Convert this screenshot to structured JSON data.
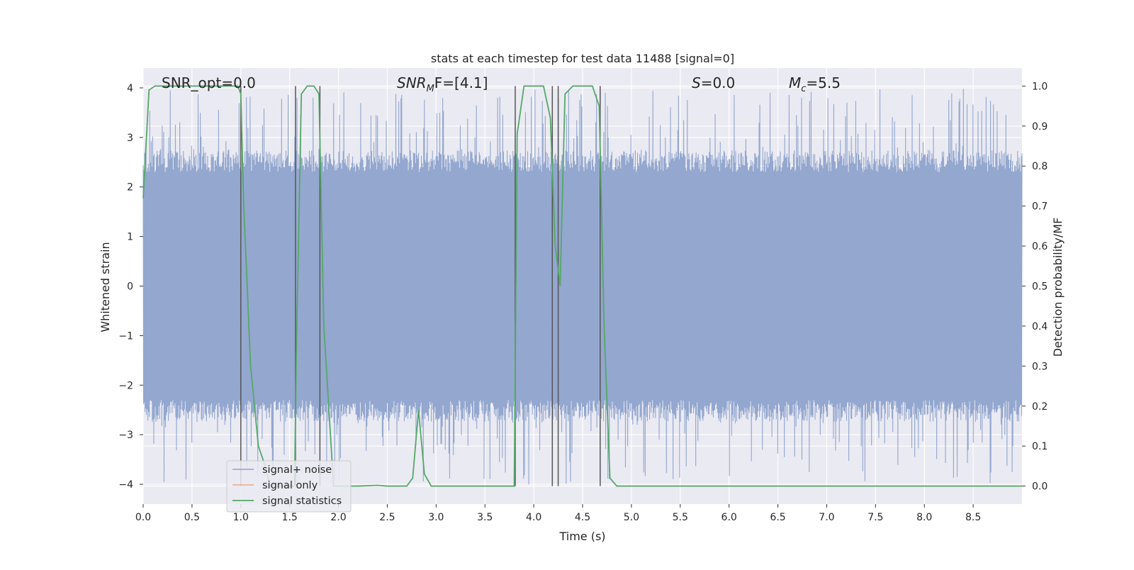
{
  "chart_data": {
    "type": "line",
    "title": "stats at each timestep for test data 11488 [signal=0]",
    "xlabel": "Time (s)",
    "ylabel": "Whitened strain",
    "y2label": "Detection probability/MF",
    "xlim": [
      0.0,
      9.0
    ],
    "ylim": [
      -4.4,
      4.4
    ],
    "y2lim": [
      -0.045,
      1.045
    ],
    "x_ticks": [
      "0.0",
      "0.5",
      "1.0",
      "1.5",
      "2.0",
      "2.5",
      "3.0",
      "3.5",
      "4.0",
      "4.5",
      "5.0",
      "5.5",
      "6.0",
      "6.5",
      "7.0",
      "7.5",
      "8.0",
      "8.5"
    ],
    "y_ticks": [
      "4",
      "3",
      "2",
      "1",
      "0",
      "−1",
      "−2",
      "−3",
      "−4"
    ],
    "y2_ticks": [
      "1.0",
      "0.9",
      "0.8",
      "0.7",
      "0.6",
      "0.5",
      "0.4",
      "0.3",
      "0.2",
      "0.1",
      "0.0"
    ],
    "grid": true,
    "legend_position": "lower-left",
    "annotations": {
      "snr_opt": "SNR_opt=0.0",
      "snr_mf_base": "SNR",
      "snr_mf_sub": "M",
      "snr_mf_rest": "F=[4.1]",
      "s_var": "S",
      "s_rest": "=0.0",
      "mc_var": "M",
      "mc_sub": "c",
      "mc_rest": "=5.5"
    },
    "series": [
      {
        "name": "signal+ noise",
        "color": "#4c72b0",
        "description_stats": {
          "core_abs": 2.3,
          "typical_peak": 3.0,
          "max_abs": 4.0
        }
      },
      {
        "name": "signal only",
        "color": "#dd8452",
        "values_note": "zero everywhere"
      },
      {
        "name": "signal statistics",
        "color": "#55a868",
        "axis": "right",
        "x": [
          0.0,
          0.06,
          0.12,
          0.5,
          0.97,
          1.0,
          1.03,
          1.1,
          1.18,
          1.25,
          1.3,
          1.55,
          1.57,
          1.62,
          1.68,
          1.75,
          1.8,
          1.85,
          1.95,
          2.0,
          2.2,
          2.4,
          2.5,
          2.7,
          2.76,
          2.82,
          2.88,
          2.95,
          3.2,
          3.5,
          3.8,
          3.83,
          3.9,
          4.1,
          4.17,
          4.22,
          4.27,
          4.32,
          4.4,
          4.6,
          4.67,
          4.72,
          4.78,
          4.85,
          5.0,
          6.0,
          7.0,
          8.0,
          9.0
        ],
        "y": [
          0.72,
          0.99,
          1.0,
          1.0,
          1.0,
          0.98,
          0.7,
          0.3,
          0.1,
          0.05,
          0.0,
          0.0,
          0.35,
          0.98,
          1.0,
          1.0,
          0.98,
          0.4,
          0.0,
          0.0,
          0.0,
          0.002,
          0.0,
          0.0,
          0.02,
          0.19,
          0.03,
          0.0,
          0.0,
          0.0,
          0.0,
          0.88,
          1.0,
          1.0,
          0.92,
          0.6,
          0.5,
          0.98,
          1.0,
          1.0,
          0.95,
          0.4,
          0.02,
          0.0,
          0.0,
          0.0,
          0.0,
          0.0,
          0.0
        ]
      }
    ],
    "vertical_lines_x": [
      1.0,
      1.56,
      1.81,
      3.81,
      4.19,
      4.25,
      4.68
    ],
    "vertical_lines_color": "#555555"
  }
}
